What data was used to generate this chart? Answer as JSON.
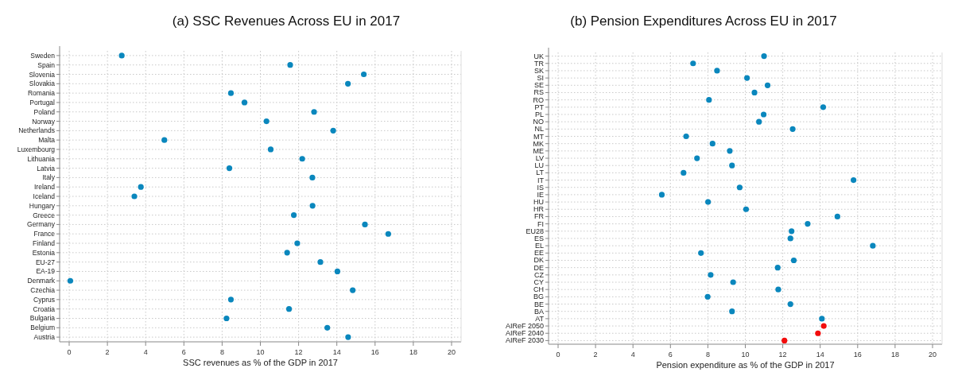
{
  "chart_data": [
    {
      "type": "scatter",
      "title": "(a) SSC Revenues Across EU in 2017",
      "xlabel": "SSC revenues as % of the GDP in 2017",
      "orientation": "horizontal",
      "categories": [
        "Sweden",
        "Spain",
        "Slovenia",
        "Slovakia",
        "Romania",
        "Portugal",
        "Poland",
        "Norway",
        "Netherlands",
        "Malta",
        "Luxembourg",
        "Lithuania",
        "Latvia",
        "Italy",
        "Ireland",
        "Iceland",
        "Hungary",
        "Greece",
        "Germany",
        "France",
        "Finland",
        "Estonia",
        "EU-27",
        "EA-19",
        "Denmark",
        "Czechia",
        "Cyprus",
        "Croatia",
        "Bulgaria",
        "Belgium",
        "Austria"
      ],
      "series": [
        {
          "color": "#0a87bd",
          "values": [
            2.75,
            11.56,
            15.41,
            14.58,
            8.46,
            9.17,
            12.81,
            10.32,
            13.81,
            4.98,
            10.54,
            12.19,
            8.38,
            12.72,
            3.75,
            3.41,
            12.73,
            11.75,
            15.47,
            16.69,
            11.93,
            11.4,
            13.14,
            14.03,
            0.06,
            14.83,
            8.46,
            11.5,
            8.23,
            13.5,
            14.59
          ]
        }
      ],
      "xlim": [
        0,
        20
      ],
      "xticks": [
        0,
        2,
        4,
        6,
        8,
        10,
        12,
        14,
        16,
        18,
        20
      ],
      "grid": true,
      "marker": "circle"
    },
    {
      "type": "scatter",
      "title": "(b) Pension Expenditures Across EU in 2017",
      "xlabel": "Pension expenditure as % of the GDP in 2017",
      "orientation": "horizontal",
      "categories": [
        "UK",
        "TR",
        "SK",
        "SI",
        "SE",
        "RS",
        "RO",
        "PT",
        "PL",
        "NO",
        "NL",
        "MT",
        "MK",
        "ME",
        "LV",
        "LU",
        "LT",
        "IT",
        "IS",
        "IE",
        "HU",
        "HR",
        "FR",
        "FI",
        "EU28",
        "ES",
        "EL",
        "EE",
        "DK",
        "DE",
        "CZ",
        "CY",
        "CH",
        "BG",
        "BE",
        "BA",
        "AT",
        "AIReF 2050",
        "AIReF 2040",
        "AIReF 2030"
      ],
      "series": [
        {
          "color": "#0a87bd",
          "values": [
            11.0,
            7.21,
            8.49,
            10.09,
            11.19,
            10.49,
            8.06,
            14.16,
            10.98,
            10.73,
            12.53,
            6.84,
            8.25,
            9.17,
            7.42,
            9.29,
            6.7,
            15.78,
            9.7,
            5.54,
            8.01,
            10.04,
            14.92,
            13.33,
            12.47,
            12.41,
            16.81,
            7.63,
            12.59,
            11.73,
            8.15,
            9.35,
            11.76,
            7.99,
            12.41,
            9.29,
            14.09,
            null,
            null,
            null
          ]
        },
        {
          "color": "#f20d0d",
          "values": [
            null,
            null,
            null,
            null,
            null,
            null,
            null,
            null,
            null,
            null,
            null,
            null,
            null,
            null,
            null,
            null,
            null,
            null,
            null,
            null,
            null,
            null,
            null,
            null,
            null,
            null,
            null,
            null,
            null,
            null,
            null,
            null,
            null,
            null,
            null,
            null,
            null,
            14.19,
            13.88,
            12.09
          ]
        }
      ],
      "xlim": [
        0,
        20
      ],
      "xticks": [
        0,
        2,
        4,
        6,
        8,
        10,
        12,
        14,
        16,
        18,
        20
      ],
      "grid": true,
      "marker": "circle"
    }
  ]
}
